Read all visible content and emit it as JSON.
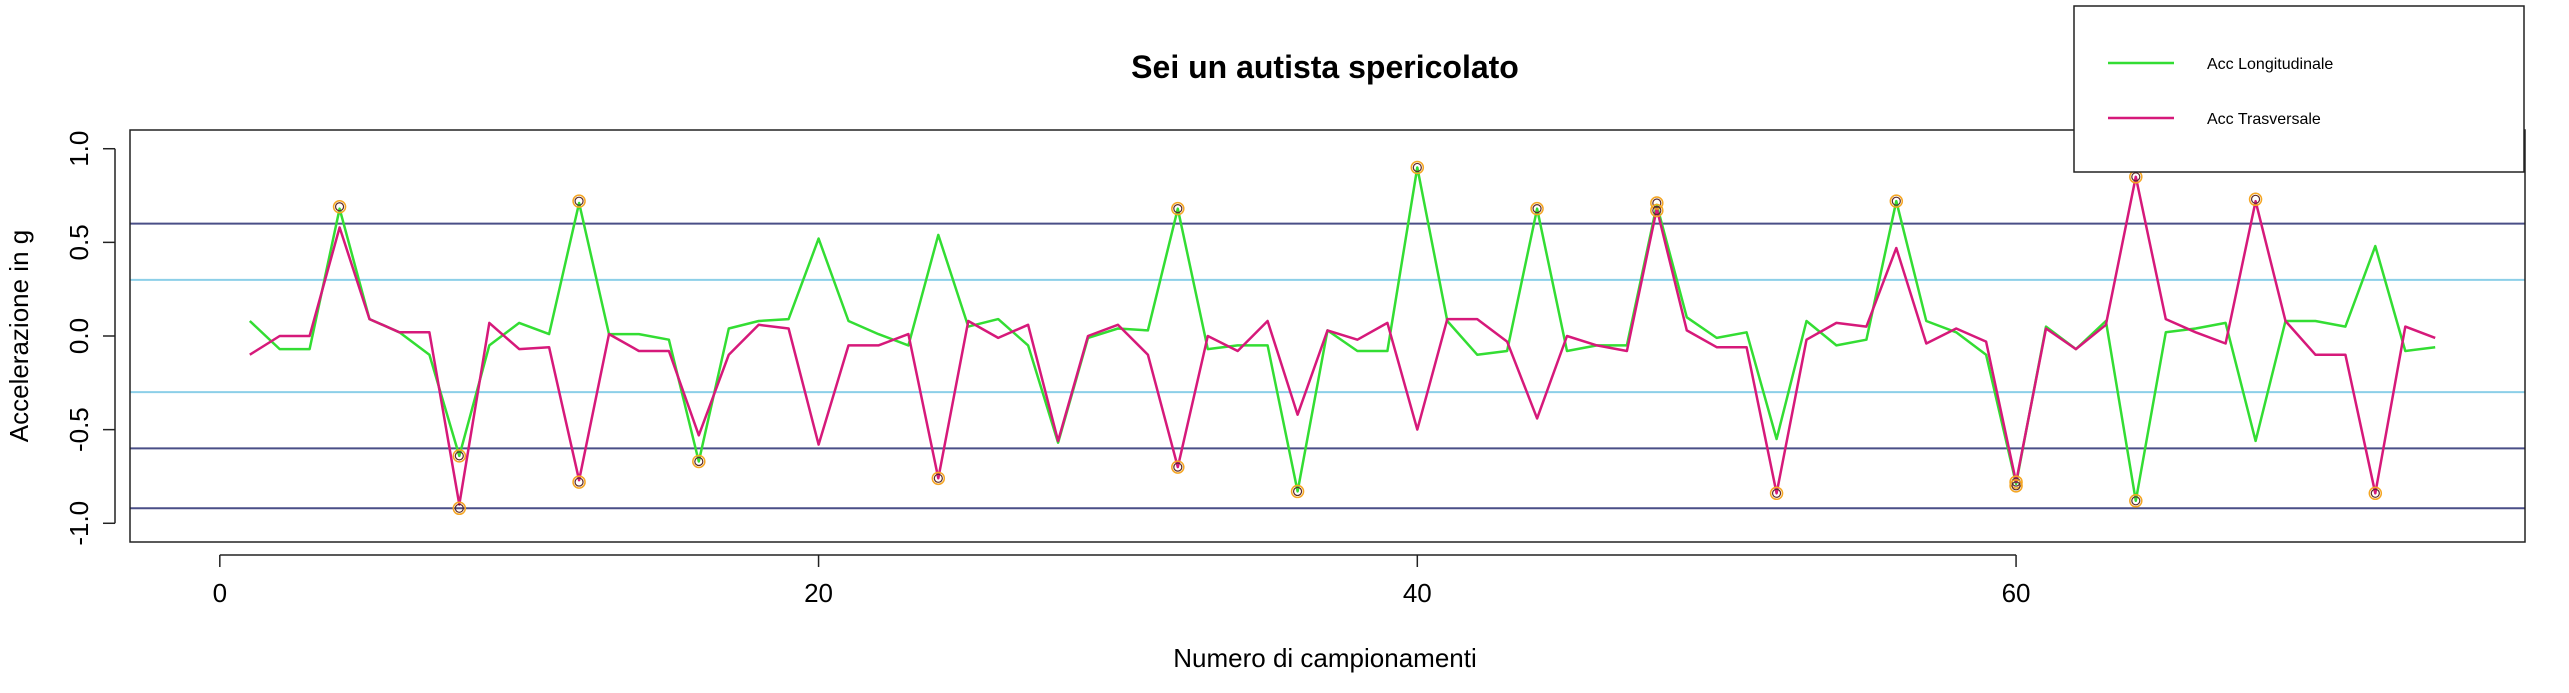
{
  "chart_data": {
    "type": "line",
    "title": "Sei un autista spericolato",
    "xlabel": "Numero di campionamenti",
    "ylabel": "Accelerazione in g",
    "xlim": [
      -3,
      77
    ],
    "ylim": [
      -1.1,
      1.1
    ],
    "x_ticks": [
      0,
      20,
      40,
      60
    ],
    "y_ticks": [
      -1.0,
      -0.5,
      0.0,
      0.5,
      1.0
    ],
    "y_tick_labels": [
      "-1.0",
      "-0.5",
      "0.0",
      "0.5",
      "1.0"
    ],
    "legend_position": "top-right",
    "thresholds": [
      {
        "y": 0.6,
        "color": "#4a4f87"
      },
      {
        "y": 0.3,
        "color": "#8ccfe8"
      },
      {
        "y": -0.3,
        "color": "#8ccfe8"
      },
      {
        "y": -0.6,
        "color": "#4a4f87"
      },
      {
        "y": -0.92,
        "color": "#4a4f87"
      }
    ],
    "series": [
      {
        "name": "Acc Longitudinale",
        "color": "#33dd33",
        "x": [
          1,
          2,
          3,
          4,
          5,
          6,
          7,
          8,
          9,
          10,
          11,
          12,
          13,
          14,
          15,
          16,
          17,
          18,
          19,
          20,
          21,
          22,
          23,
          24,
          25,
          26,
          27,
          28,
          29,
          30,
          31,
          32,
          33,
          34,
          35,
          36,
          37,
          38,
          39,
          40,
          41,
          42,
          43,
          44,
          45,
          46,
          47,
          48,
          49,
          50,
          51,
          52,
          53,
          54,
          55,
          56,
          57,
          58,
          59,
          60,
          61,
          62,
          63,
          64,
          65,
          66,
          67,
          68,
          69,
          70,
          71,
          72,
          73,
          74
        ],
        "values": [
          0.08,
          -0.07,
          -0.07,
          0.68,
          0.09,
          0.02,
          -0.1,
          -0.64,
          -0.05,
          0.07,
          0.01,
          0.71,
          0.01,
          0.01,
          -0.02,
          -0.67,
          0.04,
          0.08,
          0.09,
          0.52,
          0.08,
          0.01,
          -0.05,
          0.54,
          0.05,
          0.09,
          -0.05,
          -0.57,
          -0.01,
          0.04,
          0.03,
          0.68,
          -0.07,
          -0.05,
          -0.05,
          -0.83,
          0.03,
          -0.08,
          -0.08,
          0.9,
          0.08,
          -0.1,
          -0.08,
          0.68,
          -0.08,
          -0.05,
          -0.05,
          0.7,
          0.1,
          -0.01,
          0.02,
          -0.55,
          0.08,
          -0.05,
          -0.02,
          0.72,
          0.08,
          0.02,
          -0.1,
          -0.79,
          0.05,
          -0.07,
          0.08,
          -0.88,
          0.02,
          0.04,
          0.07,
          -0.56,
          0.08,
          0.08,
          0.05,
          0.48,
          -0.08,
          -0.06
        ]
      },
      {
        "name": "Acc Trasversale",
        "color": "#d6197a",
        "x": [
          1,
          2,
          3,
          4,
          5,
          6,
          7,
          8,
          9,
          10,
          11,
          12,
          13,
          14,
          15,
          16,
          17,
          18,
          19,
          20,
          21,
          22,
          23,
          24,
          25,
          26,
          27,
          28,
          29,
          30,
          31,
          32,
          33,
          34,
          35,
          36,
          37,
          38,
          39,
          40,
          41,
          42,
          43,
          44,
          45,
          46,
          47,
          48,
          49,
          50,
          51,
          52,
          53,
          54,
          55,
          56,
          57,
          58,
          59,
          60,
          61,
          62,
          63,
          64,
          65,
          66,
          67,
          68,
          69,
          70,
          71,
          72,
          73,
          74
        ],
        "values": [
          -0.1,
          0.0,
          0.0,
          0.58,
          0.09,
          0.02,
          0.02,
          -0.9,
          0.07,
          -0.07,
          -0.06,
          -0.77,
          0.01,
          -0.08,
          -0.08,
          -0.53,
          -0.1,
          0.06,
          0.04,
          -0.58,
          -0.05,
          -0.05,
          0.01,
          -0.76,
          0.08,
          -0.01,
          0.06,
          -0.56,
          0.0,
          0.06,
          -0.1,
          -0.7,
          0.0,
          -0.08,
          0.08,
          -0.42,
          0.03,
          -0.02,
          0.07,
          -0.5,
          0.09,
          0.09,
          -0.03,
          -0.44,
          0.0,
          -0.05,
          -0.08,
          0.68,
          0.03,
          -0.06,
          -0.06,
          -0.84,
          -0.02,
          0.07,
          0.05,
          0.47,
          -0.04,
          0.04,
          -0.03,
          -0.78,
          0.04,
          -0.07,
          0.06,
          0.85,
          0.09,
          0.02,
          -0.04,
          0.72,
          0.08,
          -0.1,
          -0.1,
          -0.84,
          0.05,
          -0.01
        ]
      }
    ],
    "highlighted_points": [
      {
        "x": 4,
        "y": 0.69
      },
      {
        "x": 8,
        "y": -0.64
      },
      {
        "x": 8,
        "y": -0.92
      },
      {
        "x": 12,
        "y": 0.72
      },
      {
        "x": 12,
        "y": -0.78
      },
      {
        "x": 16,
        "y": -0.67
      },
      {
        "x": 24,
        "y": -0.76
      },
      {
        "x": 32,
        "y": 0.68
      },
      {
        "x": 32,
        "y": -0.7
      },
      {
        "x": 36,
        "y": -0.83
      },
      {
        "x": 40,
        "y": 0.9
      },
      {
        "x": 44,
        "y": 0.68
      },
      {
        "x": 48,
        "y": 0.71
      },
      {
        "x": 48,
        "y": 0.67
      },
      {
        "x": 52,
        "y": -0.84
      },
      {
        "x": 56,
        "y": 0.72
      },
      {
        "x": 60,
        "y": -0.78
      },
      {
        "x": 60,
        "y": -0.8
      },
      {
        "x": 64,
        "y": 0.85
      },
      {
        "x": 64,
        "y": -0.88
      },
      {
        "x": 68,
        "y": 0.73
      },
      {
        "x": 72,
        "y": -0.84
      }
    ]
  }
}
